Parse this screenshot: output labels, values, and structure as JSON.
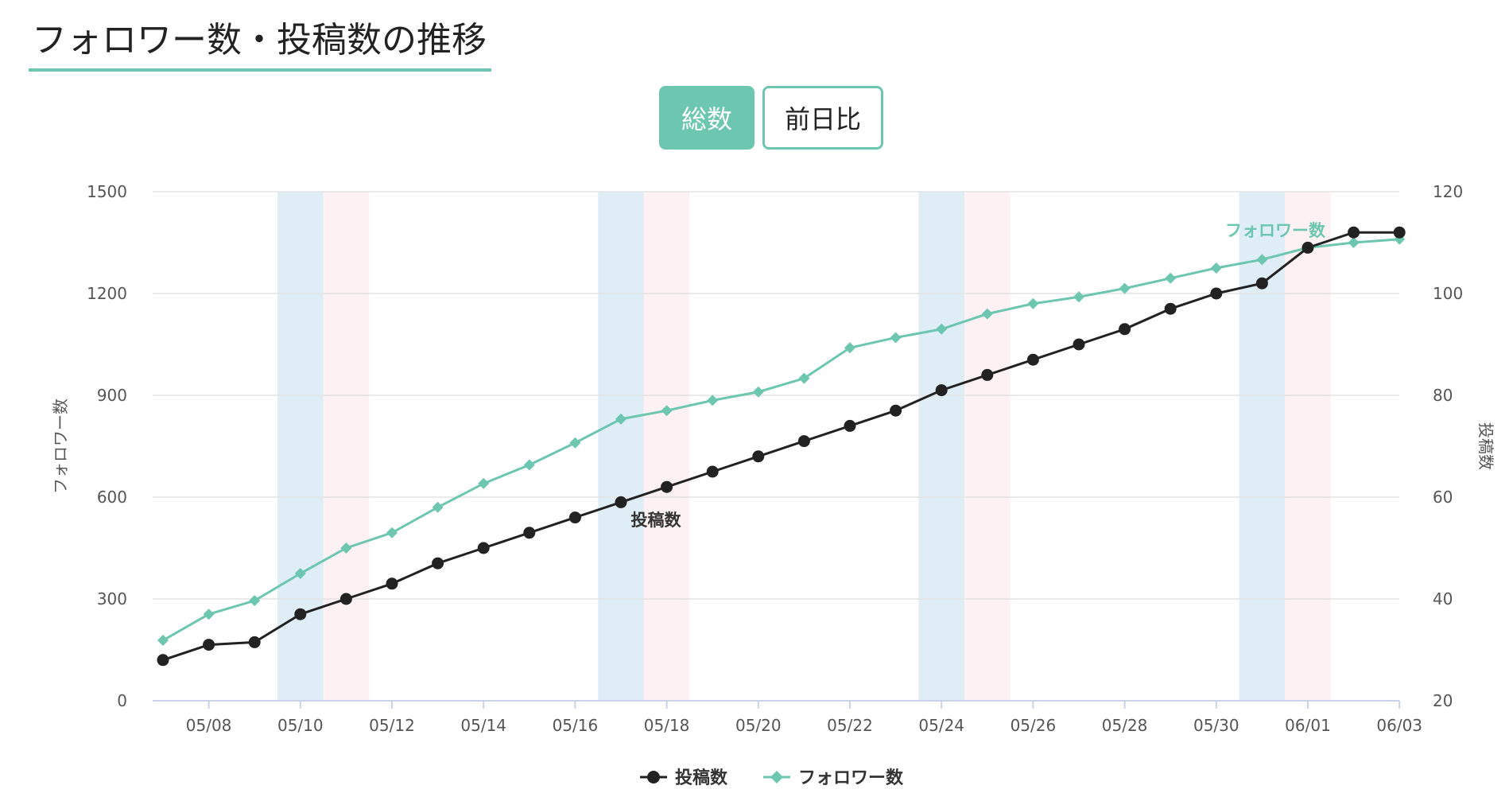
{
  "header": {
    "title": "フォロワー数・投稿数の推移"
  },
  "toggle": {
    "total_label": "総数",
    "diff_label": "前日比"
  },
  "colors": {
    "accent": "#6cc6b0",
    "posts": "#222222",
    "followers": "#6cc6b0",
    "saturday_band": "#deedf6",
    "sunday_band": "#fdf1f3"
  },
  "chart_data": {
    "type": "line",
    "x": [
      "05/07",
      "05/08",
      "05/09",
      "05/10",
      "05/11",
      "05/12",
      "05/13",
      "05/14",
      "05/15",
      "05/16",
      "05/17",
      "05/18",
      "05/19",
      "05/20",
      "05/21",
      "05/22",
      "05/23",
      "05/24",
      "05/25",
      "05/26",
      "05/27",
      "05/28",
      "05/29",
      "05/30",
      "05/31",
      "06/01",
      "06/02",
      "06/03"
    ],
    "x_tick_labels": [
      "05/08",
      "05/10",
      "05/12",
      "05/14",
      "05/16",
      "05/18",
      "05/20",
      "05/22",
      "05/24",
      "05/26",
      "05/28",
      "05/30",
      "06/01",
      "06/03"
    ],
    "series": [
      {
        "name": "投稿数",
        "axis": "right",
        "marker": "circle",
        "values": [
          28,
          31,
          31.5,
          37,
          40,
          43,
          47,
          50,
          53,
          56,
          59,
          62,
          65,
          68,
          71,
          74,
          77,
          81,
          84,
          87,
          90,
          93,
          97,
          100,
          102,
          109,
          112,
          112
        ]
      },
      {
        "name": "フォロワー数",
        "axis": "left",
        "marker": "diamond",
        "values": [
          178,
          255,
          295,
          375,
          450,
          495,
          570,
          640,
          695,
          760,
          830,
          855,
          885,
          910,
          950,
          1040,
          1070,
          1095,
          1140,
          1170,
          1190,
          1215,
          1245,
          1275,
          1300,
          1335,
          1350,
          1360
        ]
      }
    ],
    "y_left": {
      "label": "フォロワー数",
      "range": [
        0,
        1500
      ],
      "ticks": [
        "0",
        "300",
        "600",
        "900",
        "1200",
        "1500"
      ]
    },
    "y_right": {
      "label": "投稿数",
      "range": [
        20,
        120
      ],
      "ticks": [
        "20",
        "40",
        "60",
        "80",
        "100",
        "120"
      ]
    },
    "weekend_bands": {
      "saturday": [
        "05/10",
        "05/17",
        "05/24",
        "05/31"
      ],
      "sunday": [
        "05/11",
        "05/18",
        "05/25",
        "06/01"
      ]
    },
    "grid": true,
    "legend_position": "bottom-center"
  }
}
